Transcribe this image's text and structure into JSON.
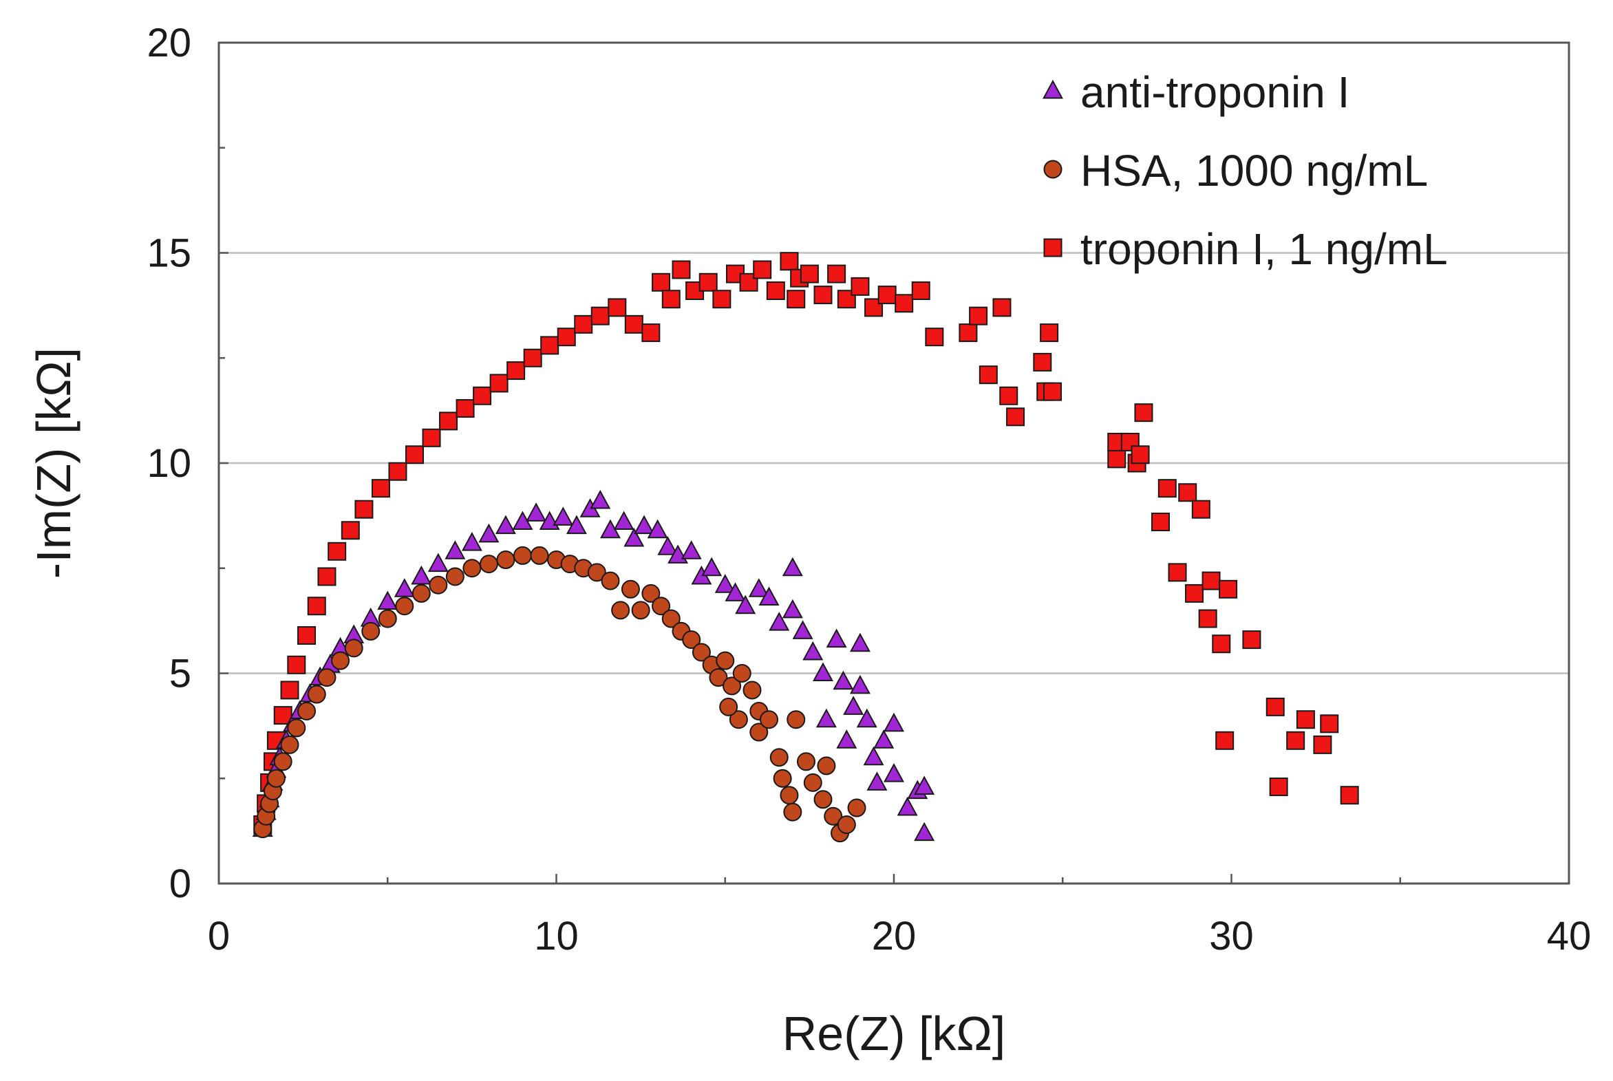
{
  "chart_data": {
    "type": "scatter",
    "title": "",
    "xlabel": "Re(Z) [kΩ]",
    "ylabel": "-Im(Z) [kΩ]",
    "xlim": [
      0,
      40
    ],
    "ylim": [
      0,
      20
    ],
    "xticks": [
      0,
      10,
      20,
      30,
      40
    ],
    "yticks": [
      0,
      5,
      10,
      15,
      20
    ],
    "minor_tick_step": 2.5,
    "grid": "horizontal",
    "legend_position": "top-right",
    "series": [
      {
        "name": "anti-troponin I",
        "marker": "triangle",
        "color": "#a326d6",
        "points": [
          [
            1.3,
            1.3
          ],
          [
            1.4,
            1.7
          ],
          [
            1.5,
            2.0
          ],
          [
            1.6,
            2.4
          ],
          [
            1.7,
            2.7
          ],
          [
            1.8,
            3.0
          ],
          [
            2.0,
            3.4
          ],
          [
            2.2,
            3.8
          ],
          [
            2.4,
            4.1
          ],
          [
            2.7,
            4.5
          ],
          [
            3.0,
            4.9
          ],
          [
            3.3,
            5.2
          ],
          [
            3.6,
            5.6
          ],
          [
            4.0,
            5.9
          ],
          [
            4.5,
            6.3
          ],
          [
            5.0,
            6.7
          ],
          [
            5.5,
            7.0
          ],
          [
            6.0,
            7.3
          ],
          [
            6.5,
            7.6
          ],
          [
            7.0,
            7.9
          ],
          [
            7.5,
            8.1
          ],
          [
            8.0,
            8.3
          ],
          [
            8.5,
            8.5
          ],
          [
            9.0,
            8.6
          ],
          [
            9.4,
            8.8
          ],
          [
            9.8,
            8.6
          ],
          [
            10.2,
            8.7
          ],
          [
            10.6,
            8.5
          ],
          [
            11.0,
            8.9
          ],
          [
            11.3,
            9.1
          ],
          [
            11.6,
            8.4
          ],
          [
            12.0,
            8.6
          ],
          [
            12.3,
            8.2
          ],
          [
            12.6,
            8.5
          ],
          [
            13.0,
            8.4
          ],
          [
            13.3,
            8.0
          ],
          [
            13.6,
            7.8
          ],
          [
            14.0,
            7.9
          ],
          [
            14.3,
            7.3
          ],
          [
            14.6,
            7.5
          ],
          [
            15.0,
            7.1
          ],
          [
            15.3,
            6.9
          ],
          [
            15.6,
            6.6
          ],
          [
            16.0,
            7.0
          ],
          [
            16.3,
            6.8
          ],
          [
            16.6,
            6.2
          ],
          [
            17.0,
            7.5
          ],
          [
            17.0,
            6.5
          ],
          [
            17.3,
            6.0
          ],
          [
            17.6,
            5.5
          ],
          [
            17.9,
            5.0
          ],
          [
            18.0,
            3.9
          ],
          [
            18.3,
            5.8
          ],
          [
            18.5,
            4.8
          ],
          [
            18.6,
            3.4
          ],
          [
            18.8,
            4.2
          ],
          [
            19.0,
            5.7
          ],
          [
            19.0,
            4.7
          ],
          [
            19.2,
            3.9
          ],
          [
            19.4,
            3.0
          ],
          [
            19.5,
            2.4
          ],
          [
            19.7,
            3.4
          ],
          [
            20.0,
            3.8
          ],
          [
            20.0,
            2.6
          ],
          [
            20.4,
            1.8
          ],
          [
            20.7,
            2.2
          ],
          [
            20.9,
            2.3
          ],
          [
            20.9,
            1.2
          ]
        ]
      },
      {
        "name": "HSA, 1000 ng/mL",
        "marker": "circle",
        "color": "#c0461b",
        "points": [
          [
            1.3,
            1.3
          ],
          [
            1.4,
            1.6
          ],
          [
            1.5,
            1.9
          ],
          [
            1.6,
            2.2
          ],
          [
            1.7,
            2.5
          ],
          [
            1.9,
            2.9
          ],
          [
            2.1,
            3.3
          ],
          [
            2.3,
            3.7
          ],
          [
            2.6,
            4.1
          ],
          [
            2.9,
            4.5
          ],
          [
            3.2,
            4.9
          ],
          [
            3.6,
            5.3
          ],
          [
            4.0,
            5.6
          ],
          [
            4.5,
            6.0
          ],
          [
            5.0,
            6.3
          ],
          [
            5.5,
            6.6
          ],
          [
            6.0,
            6.9
          ],
          [
            6.5,
            7.1
          ],
          [
            7.0,
            7.3
          ],
          [
            7.5,
            7.5
          ],
          [
            8.0,
            7.6
          ],
          [
            8.5,
            7.7
          ],
          [
            9.0,
            7.8
          ],
          [
            9.5,
            7.8
          ],
          [
            10.0,
            7.7
          ],
          [
            10.4,
            7.6
          ],
          [
            10.8,
            7.5
          ],
          [
            11.2,
            7.4
          ],
          [
            11.6,
            7.2
          ],
          [
            11.9,
            6.5
          ],
          [
            12.2,
            7.0
          ],
          [
            12.5,
            6.5
          ],
          [
            12.8,
            6.9
          ],
          [
            13.1,
            6.6
          ],
          [
            13.4,
            6.3
          ],
          [
            13.7,
            6.0
          ],
          [
            14.0,
            5.8
          ],
          [
            14.3,
            5.5
          ],
          [
            14.6,
            5.2
          ],
          [
            14.8,
            4.9
          ],
          [
            15.0,
            5.3
          ],
          [
            15.2,
            4.7
          ],
          [
            15.4,
            3.9
          ],
          [
            15.1,
            4.2
          ],
          [
            15.5,
            5.0
          ],
          [
            15.8,
            4.6
          ],
          [
            16.0,
            4.1
          ],
          [
            16.0,
            3.6
          ],
          [
            16.3,
            3.9
          ],
          [
            16.6,
            3.0
          ],
          [
            16.7,
            2.5
          ],
          [
            16.9,
            2.1
          ],
          [
            17.0,
            1.7
          ],
          [
            17.1,
            3.9
          ],
          [
            17.4,
            2.9
          ],
          [
            17.6,
            2.4
          ],
          [
            17.9,
            2.0
          ],
          [
            18.0,
            2.8
          ],
          [
            18.2,
            1.6
          ],
          [
            18.4,
            1.2
          ],
          [
            18.6,
            1.4
          ],
          [
            18.9,
            1.8
          ]
        ]
      },
      {
        "name": "troponin I, 1 ng/mL",
        "marker": "square",
        "color": "#ee1515",
        "points": [
          [
            1.3,
            1.4
          ],
          [
            1.4,
            1.9
          ],
          [
            1.5,
            2.4
          ],
          [
            1.6,
            2.9
          ],
          [
            1.7,
            3.4
          ],
          [
            1.9,
            4.0
          ],
          [
            2.1,
            4.6
          ],
          [
            2.3,
            5.2
          ],
          [
            2.6,
            5.9
          ],
          [
            2.9,
            6.6
          ],
          [
            3.2,
            7.3
          ],
          [
            3.5,
            7.9
          ],
          [
            3.9,
            8.4
          ],
          [
            4.3,
            8.9
          ],
          [
            4.8,
            9.4
          ],
          [
            5.3,
            9.8
          ],
          [
            5.8,
            10.2
          ],
          [
            6.3,
            10.6
          ],
          [
            6.8,
            11.0
          ],
          [
            7.3,
            11.3
          ],
          [
            7.8,
            11.6
          ],
          [
            8.3,
            11.9
          ],
          [
            8.8,
            12.2
          ],
          [
            9.3,
            12.5
          ],
          [
            9.8,
            12.8
          ],
          [
            10.3,
            13.0
          ],
          [
            10.8,
            13.3
          ],
          [
            11.3,
            13.5
          ],
          [
            11.8,
            13.7
          ],
          [
            12.3,
            13.3
          ],
          [
            12.8,
            13.1
          ],
          [
            13.1,
            14.3
          ],
          [
            13.4,
            13.9
          ],
          [
            13.7,
            14.6
          ],
          [
            14.1,
            14.1
          ],
          [
            14.5,
            14.3
          ],
          [
            14.9,
            13.9
          ],
          [
            15.3,
            14.5
          ],
          [
            15.7,
            14.3
          ],
          [
            16.1,
            14.6
          ],
          [
            16.5,
            14.1
          ],
          [
            16.9,
            14.8
          ],
          [
            17.2,
            14.4
          ],
          [
            17.1,
            13.9
          ],
          [
            17.5,
            14.5
          ],
          [
            17.9,
            14.0
          ],
          [
            18.3,
            14.5
          ],
          [
            18.6,
            13.9
          ],
          [
            19.0,
            14.2
          ],
          [
            19.4,
            13.7
          ],
          [
            19.8,
            14.0
          ],
          [
            20.3,
            13.8
          ],
          [
            20.8,
            14.1
          ],
          [
            21.2,
            13.0
          ],
          [
            22.2,
            13.1
          ],
          [
            22.5,
            13.5
          ],
          [
            22.8,
            12.1
          ],
          [
            23.2,
            13.7
          ],
          [
            23.4,
            11.6
          ],
          [
            23.6,
            11.1
          ],
          [
            24.4,
            12.4
          ],
          [
            24.6,
            13.1
          ],
          [
            24.5,
            11.7
          ],
          [
            24.7,
            11.7
          ],
          [
            26.6,
            10.1
          ],
          [
            26.6,
            10.5
          ],
          [
            27.0,
            10.5
          ],
          [
            27.2,
            10.0
          ],
          [
            27.3,
            10.2
          ],
          [
            27.4,
            11.2
          ],
          [
            27.9,
            8.6
          ],
          [
            28.1,
            9.4
          ],
          [
            28.7,
            9.3
          ],
          [
            29.1,
            8.9
          ],
          [
            28.4,
            7.4
          ],
          [
            28.9,
            6.9
          ],
          [
            29.3,
            6.3
          ],
          [
            29.4,
            7.2
          ],
          [
            29.7,
            5.7
          ],
          [
            29.9,
            7.0
          ],
          [
            30.6,
            5.8
          ],
          [
            29.8,
            3.4
          ],
          [
            31.3,
            4.2
          ],
          [
            31.4,
            2.3
          ],
          [
            31.9,
            3.4
          ],
          [
            32.2,
            3.9
          ],
          [
            32.7,
            3.3
          ],
          [
            32.9,
            3.8
          ],
          [
            33.5,
            2.1
          ]
        ]
      }
    ]
  }
}
